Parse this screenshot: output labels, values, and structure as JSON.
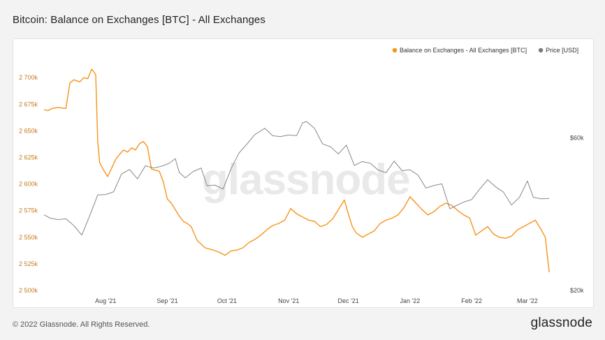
{
  "page": {
    "title": "Bitcoin: Balance on Exchanges [BTC] - All Exchanges",
    "copyright": "© 2022 Glassnode. All Rights Reserved.",
    "brand": "glassnode",
    "watermark": "glassnode"
  },
  "chart_data": {
    "type": "line",
    "legend": {
      "placement": "top-right",
      "entries": [
        {
          "label": "Balance on Exchanges - All Exchanges [BTC]",
          "color": "#f7931a"
        },
        {
          "label": "Price [USD]",
          "color": "#7a7a7a"
        }
      ]
    },
    "x_ticks": [
      "Aug '21",
      "Sep '21",
      "Oct '21",
      "Nov '21",
      "Dec '21",
      "Jan '22",
      "Feb '22",
      "Mar '22"
    ],
    "x_range": [
      "2021-07-01",
      "2022-03-20"
    ],
    "y_left": {
      "label": "",
      "ticks": [
        "2 500k",
        "2 525k",
        "2 550k",
        "2 575k",
        "2 600k",
        "2 625k",
        "2 650k",
        "2 675k",
        "2 700k"
      ],
      "range": [
        2500000,
        2710000
      ]
    },
    "y_right": {
      "label": "",
      "ticks": [
        "$20k",
        "$60k"
      ],
      "scale": "log",
      "range": [
        20000,
        100000
      ]
    },
    "series": [
      {
        "name": "Balance on Exchanges - All Exchanges [BTC]",
        "axis": "left",
        "color": "#f7931a",
        "x": [
          "2021-07-01",
          "2021-07-03",
          "2021-07-05",
          "2021-07-08",
          "2021-07-12",
          "2021-07-14",
          "2021-07-16",
          "2021-07-19",
          "2021-07-21",
          "2021-07-23",
          "2021-07-25",
          "2021-07-27",
          "2021-07-28",
          "2021-07-29",
          "2021-07-31",
          "2021-08-02",
          "2021-08-04",
          "2021-08-06",
          "2021-08-08",
          "2021-08-10",
          "2021-08-12",
          "2021-08-14",
          "2021-08-16",
          "2021-08-18",
          "2021-08-20",
          "2021-08-22",
          "2021-08-24",
          "2021-08-26",
          "2021-08-28",
          "2021-08-30",
          "2021-09-01",
          "2021-09-03",
          "2021-09-05",
          "2021-09-07",
          "2021-09-09",
          "2021-09-11",
          "2021-09-13",
          "2021-09-16",
          "2021-09-20",
          "2021-09-24",
          "2021-09-27",
          "2021-09-30",
          "2021-10-03",
          "2021-10-06",
          "2021-10-09",
          "2021-10-12",
          "2021-10-15",
          "2021-10-18",
          "2021-10-21",
          "2021-10-24",
          "2021-10-27",
          "2021-10-30",
          "2021-11-02",
          "2021-11-05",
          "2021-11-08",
          "2021-11-11",
          "2021-11-14",
          "2021-11-17",
          "2021-11-20",
          "2021-11-23",
          "2021-11-26",
          "2021-11-29",
          "2021-12-01",
          "2021-12-03",
          "2021-12-05",
          "2021-12-08",
          "2021-12-11",
          "2021-12-14",
          "2021-12-17",
          "2021-12-20",
          "2021-12-23",
          "2021-12-26",
          "2021-12-29",
          "2022-01-01",
          "2022-01-04",
          "2022-01-07",
          "2022-01-10",
          "2022-01-13",
          "2022-01-16",
          "2022-01-19",
          "2022-01-22",
          "2022-01-25",
          "2022-01-28",
          "2022-01-31",
          "2022-02-03",
          "2022-02-06",
          "2022-02-09",
          "2022-02-12",
          "2022-02-15",
          "2022-02-18",
          "2022-02-21",
          "2022-02-24",
          "2022-02-27",
          "2022-03-02",
          "2022-03-05",
          "2022-03-08",
          "2022-03-10",
          "2022-03-12"
        ],
        "values": [
          2670000,
          2669000,
          2671000,
          2672000,
          2671000,
          2695000,
          2698000,
          2696000,
          2700000,
          2699000,
          2708000,
          2703000,
          2640000,
          2620000,
          2613000,
          2607000,
          2615000,
          2623000,
          2628000,
          2632000,
          2630000,
          2634000,
          2632000,
          2638000,
          2640000,
          2635000,
          2614000,
          2613000,
          2612000,
          2602000,
          2586000,
          2582000,
          2576000,
          2570000,
          2565000,
          2563000,
          2560000,
          2547000,
          2540000,
          2538000,
          2536000,
          2533000,
          2537000,
          2538000,
          2540000,
          2545000,
          2548000,
          2552000,
          2557000,
          2561000,
          2563000,
          2566000,
          2577000,
          2572000,
          2569000,
          2566000,
          2565000,
          2560000,
          2562000,
          2567000,
          2576000,
          2585000,
          2572000,
          2560000,
          2554000,
          2550000,
          2553000,
          2556000,
          2563000,
          2566000,
          2568000,
          2571000,
          2578000,
          2588000,
          2582000,
          2576000,
          2571000,
          2574000,
          2579000,
          2582000,
          2580000,
          2575000,
          2571000,
          2568000,
          2552000,
          2556000,
          2560000,
          2553000,
          2550000,
          2549000,
          2551000,
          2557000,
          2560000,
          2563000,
          2566000,
          2557000,
          2550000,
          2517000
        ]
      },
      {
        "name": "Price [USD]",
        "axis": "right",
        "color": "#7a7a7a",
        "x": [
          "2021-07-01",
          "2021-07-04",
          "2021-07-08",
          "2021-07-12",
          "2021-07-16",
          "2021-07-20",
          "2021-07-24",
          "2021-07-28",
          "2021-08-01",
          "2021-08-05",
          "2021-08-09",
          "2021-08-13",
          "2021-08-17",
          "2021-08-21",
          "2021-08-25",
          "2021-08-29",
          "2021-09-02",
          "2021-09-05",
          "2021-09-07",
          "2021-09-10",
          "2021-09-14",
          "2021-09-18",
          "2021-09-21",
          "2021-09-25",
          "2021-09-29",
          "2021-10-03",
          "2021-10-07",
          "2021-10-11",
          "2021-10-15",
          "2021-10-20",
          "2021-10-24",
          "2021-10-28",
          "2021-11-01",
          "2021-11-05",
          "2021-11-08",
          "2021-11-10",
          "2021-11-14",
          "2021-11-18",
          "2021-11-22",
          "2021-11-26",
          "2021-11-30",
          "2021-12-04",
          "2021-12-08",
          "2021-12-12",
          "2021-12-16",
          "2021-12-20",
          "2021-12-24",
          "2021-12-28",
          "2022-01-01",
          "2022-01-05",
          "2022-01-09",
          "2022-01-13",
          "2022-01-17",
          "2022-01-21",
          "2022-01-24",
          "2022-01-28",
          "2022-02-01",
          "2022-02-05",
          "2022-02-09",
          "2022-02-13",
          "2022-02-17",
          "2022-02-21",
          "2022-02-25",
          "2022-03-01",
          "2022-03-04",
          "2022-03-08",
          "2022-03-12"
        ],
        "values": [
          34500,
          33700,
          33300,
          33500,
          31900,
          29800,
          34300,
          39800,
          39900,
          40700,
          46300,
          47800,
          44700,
          49100,
          48300,
          48900,
          50000,
          51700,
          46800,
          45000,
          47100,
          48300,
          42500,
          42700,
          41500,
          48000,
          53800,
          57400,
          61500,
          64300,
          60900,
          60600,
          61300,
          61000,
          66900,
          67500,
          64300,
          57500,
          56300,
          53500,
          57000,
          49200,
          50600,
          50000,
          47600,
          46700,
          50800,
          47400,
          47700,
          45900,
          41800,
          42600,
          43100,
          36000,
          36800,
          37800,
          38500,
          41500,
          44400,
          42200,
          40600,
          37000,
          39100,
          44000,
          39100,
          38700,
          38800
        ]
      }
    ]
  }
}
